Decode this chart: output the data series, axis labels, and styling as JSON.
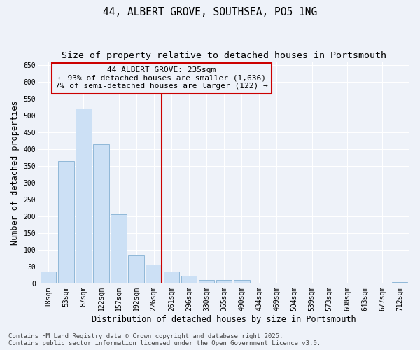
{
  "title": "44, ALBERT GROVE, SOUTHSEA, PO5 1NG",
  "subtitle": "Size of property relative to detached houses in Portsmouth",
  "xlabel": "Distribution of detached houses by size in Portsmouth",
  "ylabel": "Number of detached properties",
  "categories": [
    "18sqm",
    "53sqm",
    "87sqm",
    "122sqm",
    "157sqm",
    "192sqm",
    "226sqm",
    "261sqm",
    "296sqm",
    "330sqm",
    "365sqm",
    "400sqm",
    "434sqm",
    "469sqm",
    "504sqm",
    "539sqm",
    "573sqm",
    "608sqm",
    "643sqm",
    "677sqm",
    "712sqm"
  ],
  "values": [
    35,
    365,
    520,
    415,
    205,
    83,
    55,
    35,
    22,
    10,
    10,
    10,
    0,
    0,
    0,
    0,
    0,
    0,
    0,
    0,
    3
  ],
  "bar_color": "#cce0f5",
  "bar_edge_color": "#90b8d8",
  "vline_x_index": 6,
  "vline_color": "#cc0000",
  "annotation_text": "44 ALBERT GROVE: 235sqm\n← 93% of detached houses are smaller (1,636)\n7% of semi-detached houses are larger (122) →",
  "annotation_box_color": "#cc0000",
  "ylim": [
    0,
    660
  ],
  "yticks": [
    0,
    50,
    100,
    150,
    200,
    250,
    300,
    350,
    400,
    450,
    500,
    550,
    600,
    650
  ],
  "footer_line1": "Contains HM Land Registry data © Crown copyright and database right 2025.",
  "footer_line2": "Contains public sector information licensed under the Open Government Licence v3.0.",
  "bg_color": "#eef2f9",
  "grid_color": "#ffffff",
  "title_fontsize": 10.5,
  "subtitle_fontsize": 9.5,
  "axis_label_fontsize": 8.5,
  "tick_fontsize": 7,
  "annotation_fontsize": 8,
  "footer_fontsize": 6.5
}
